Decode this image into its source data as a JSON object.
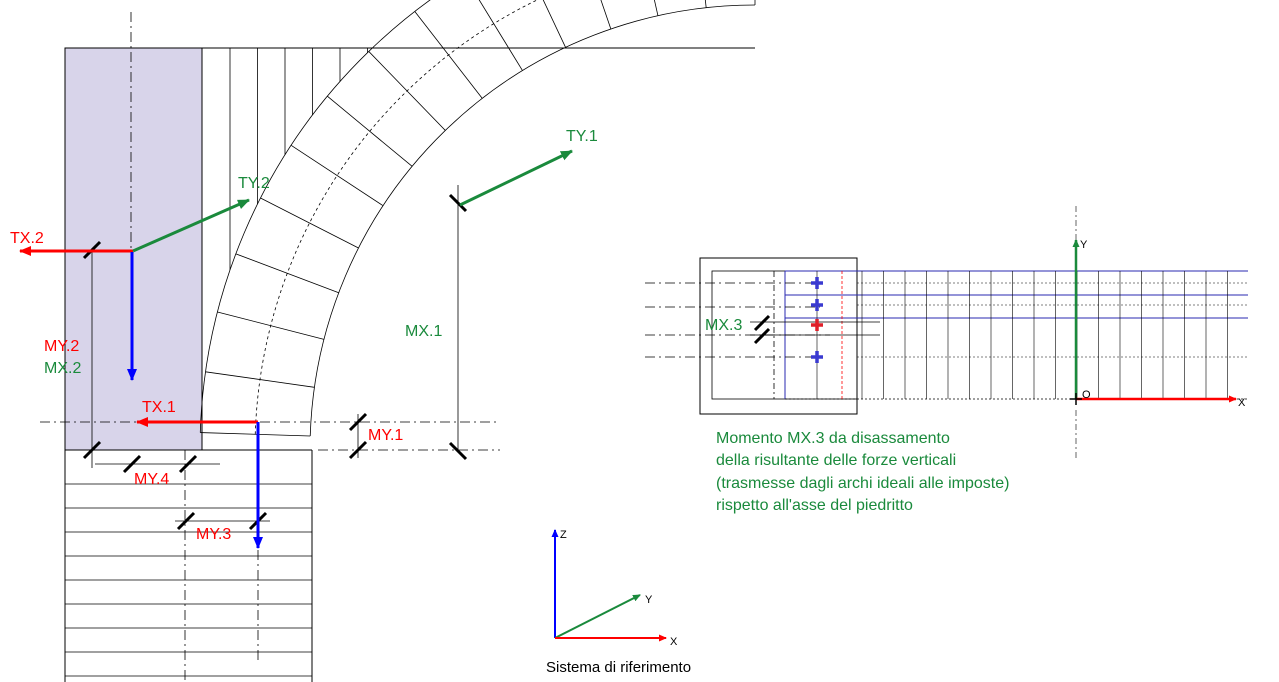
{
  "colors": {
    "red": "#ff0000",
    "green": "#1a8a3c",
    "blue": "#0000ff",
    "pillar_fill": "#d8d4ea",
    "line": "#000000",
    "grid_blue": "#2a2ab0"
  },
  "labels": {
    "tx2": "TX.2",
    "ty2": "TY.2",
    "ty1": "TY.1",
    "my2": "MY.2",
    "mx2": "MX.2",
    "mx1": "MX.1",
    "tx1": "TX.1",
    "my1": "MY.1",
    "my4": "MY.4",
    "my3": "MY.3",
    "mx3": "MX.3"
  },
  "section_axes": {
    "y": "Y",
    "x": "X",
    "origin": "O"
  },
  "note": {
    "lines": [
      "Momento MX.3 da disassamento",
      "della risultante delle forze verticali",
      "(trasmesse dagli archi ideali alle imposte)",
      "rispetto all'asse del piedritto"
    ]
  },
  "reference_system": {
    "z": "Z",
    "y": "Y",
    "x": "X",
    "caption": "Sistema di riferimento"
  }
}
